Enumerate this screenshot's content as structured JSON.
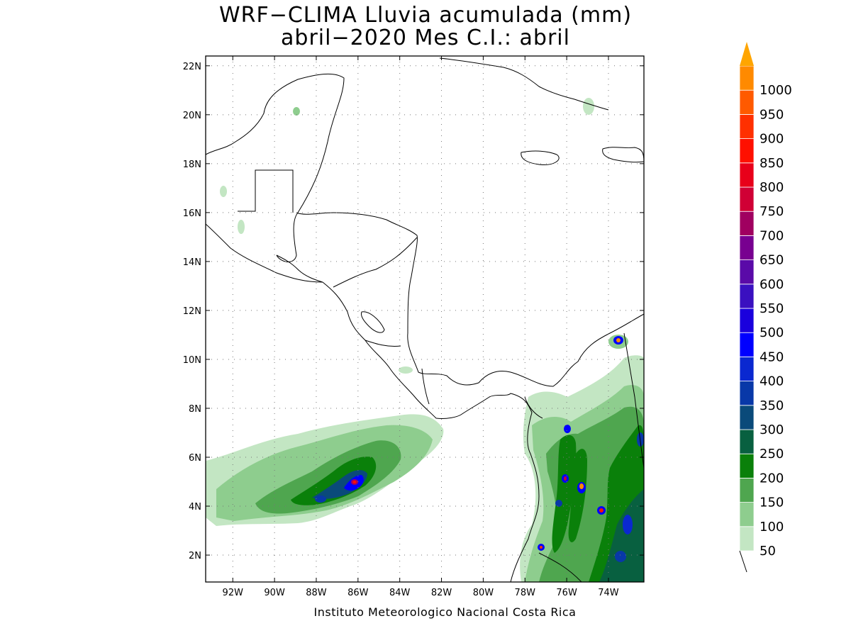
{
  "title_line1": "WRF−CLIMA Lluvia acumulada (mm)",
  "title_line2": "abril−2020 Mes C.I.: abril",
  "credit": "Instituto Meteorologico Nacional Costa Rica",
  "map": {
    "lon_range": [
      -93.3,
      -72.3
    ],
    "lat_range": [
      0.9,
      22.4
    ],
    "lon_ticks": [
      {
        "value": -92,
        "label": "92W"
      },
      {
        "value": -90,
        "label": "90W"
      },
      {
        "value": -88,
        "label": "88W"
      },
      {
        "value": -86,
        "label": "86W"
      },
      {
        "value": -84,
        "label": "84W"
      },
      {
        "value": -82,
        "label": "82W"
      },
      {
        "value": -80,
        "label": "80W"
      },
      {
        "value": -78,
        "label": "78W"
      },
      {
        "value": -76,
        "label": "76W"
      },
      {
        "value": -74,
        "label": "74W"
      }
    ],
    "lat_ticks": [
      {
        "value": 2,
        "label": "2N"
      },
      {
        "value": 4,
        "label": "4N"
      },
      {
        "value": 6,
        "label": "6N"
      },
      {
        "value": 8,
        "label": "8N"
      },
      {
        "value": 10,
        "label": "10N"
      },
      {
        "value": 12,
        "label": "12N"
      },
      {
        "value": 14,
        "label": "14N"
      },
      {
        "value": 16,
        "label": "16N"
      },
      {
        "value": 18,
        "label": "18N"
      },
      {
        "value": 20,
        "label": "20N"
      },
      {
        "value": 22,
        "label": "22N"
      }
    ]
  },
  "colorbar": {
    "levels": [
      {
        "label": "50",
        "color": "#c3e6c3"
      },
      {
        "label": "100",
        "color": "#8ecd8e"
      },
      {
        "label": "150",
        "color": "#4fa64f"
      },
      {
        "label": "200",
        "color": "#0a800a"
      },
      {
        "label": "250",
        "color": "#086040"
      },
      {
        "label": "300",
        "color": "#0a4a7a"
      },
      {
        "label": "350",
        "color": "#0838a8"
      },
      {
        "label": "400",
        "color": "#0a28d0"
      },
      {
        "label": "450",
        "color": "#0000ff"
      },
      {
        "label": "500",
        "color": "#1a00dd"
      },
      {
        "label": "550",
        "color": "#3a10c0"
      },
      {
        "label": "600",
        "color": "#5a0aa8"
      },
      {
        "label": "650",
        "color": "#780090"
      },
      {
        "label": "700",
        "color": "#a00060"
      },
      {
        "label": "750",
        "color": "#d00035"
      },
      {
        "label": "800",
        "color": "#e8001a"
      },
      {
        "label": "850",
        "color": "#ff1000"
      },
      {
        "label": "900",
        "color": "#ff3000"
      },
      {
        "label": "950",
        "color": "#ff5a00"
      },
      {
        "label": "1000",
        "color": "#ff8a00"
      }
    ],
    "overflow_color": "#ffa500"
  }
}
